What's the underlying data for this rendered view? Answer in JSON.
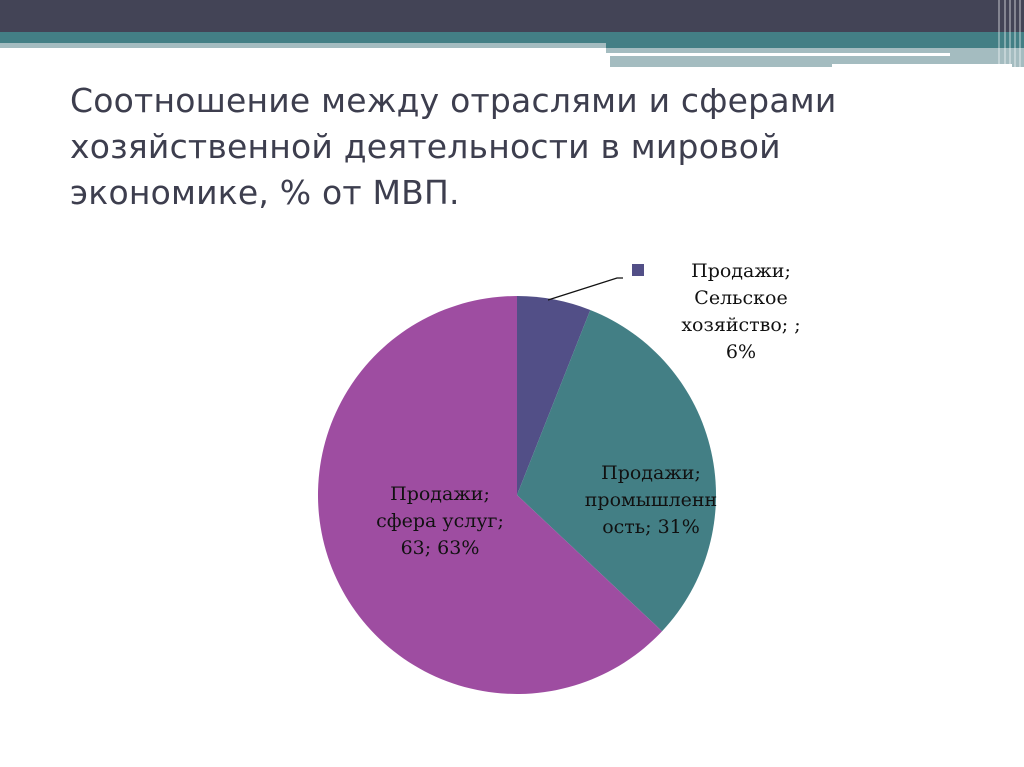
{
  "slide": {
    "title_lines": [
      "Соотношение между отраслями и сферами",
      "хозяйственной деятельности в мировой",
      "экономике, % от МВП."
    ],
    "colors": {
      "header_dark": "#434456",
      "header_teal": "#437f85",
      "header_light": "#a4bcc0",
      "title_text": "#3d3e4e"
    }
  },
  "chart_data": {
    "type": "pie",
    "title": "Соотношение между отраслями и сферами хозяйственной деятельности в мировой экономике, % от МВП.",
    "series_name": "Продажи",
    "categories": [
      "Сельское хозяйство",
      "промышленность",
      "сфера услуг"
    ],
    "values": [
      6,
      31,
      63
    ],
    "colors": [
      "#524f87",
      "#437f85",
      "#9e4da1"
    ],
    "start_angle": "top, clockwise",
    "data_labels": [
      {
        "lines": [
          "Продажи;",
          "Сельское",
          "хозяйство; ;",
          "6%"
        ],
        "position": "outside with leader line"
      },
      {
        "lines": [
          "Продажи;",
          "промышленн",
          "ость; 31%"
        ],
        "position": "inside"
      },
      {
        "lines": [
          "Продажи;",
          "сфера услуг;",
          "63; 63%"
        ],
        "position": "inside"
      }
    ],
    "legend": {
      "visible": false
    }
  }
}
